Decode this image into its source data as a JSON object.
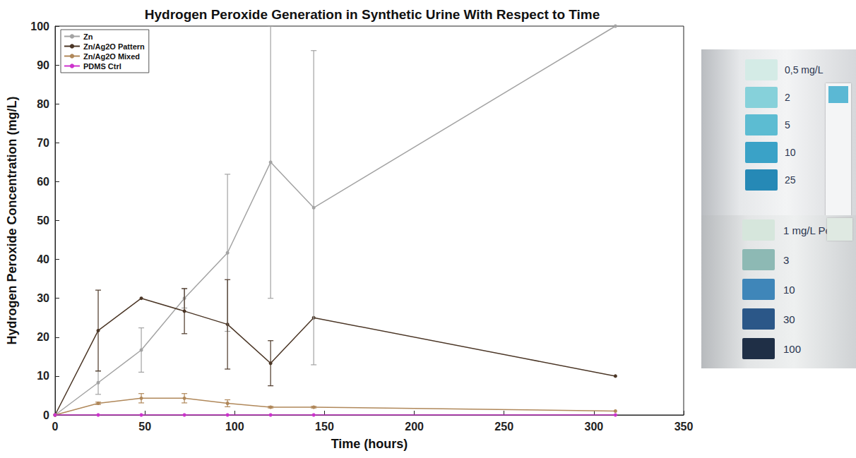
{
  "chart_data": {
    "type": "line",
    "title": "Hydrogen Peroxide Generation in Synthetic Urine With Respect to Time",
    "x_label": "Time (hours)",
    "y_label": "Hydrogen Peroxide Concentration (mg/L)",
    "xlim": [
      0,
      350
    ],
    "xticks": [
      0,
      50,
      100,
      150,
      200,
      250,
      300,
      350
    ],
    "ylim": [
      0,
      100
    ],
    "yticks": [
      0,
      10,
      20,
      30,
      40,
      50,
      60,
      70,
      80,
      90,
      100
    ],
    "grid": false,
    "legend": "top-left",
    "marker": "circle",
    "x": [
      0,
      24,
      48,
      72,
      96,
      120,
      144,
      312
    ],
    "series": [
      {
        "name": "Zn",
        "color": "#a3a3a3",
        "values": [
          0,
          8.3,
          16.7,
          30,
          41.7,
          65,
          53.3,
          100
        ],
        "errors": [
          0,
          3,
          5.7,
          2.5,
          20.2,
          35,
          40.4,
          0
        ]
      },
      {
        "name": "Zn/Ag2O Pattern",
        "color": "#4b3626",
        "values": [
          0,
          21.7,
          30,
          26.7,
          23.3,
          13.3,
          25,
          10
        ],
        "errors": [
          0,
          10.4,
          0,
          5.8,
          11.5,
          5.8,
          0,
          0
        ]
      },
      {
        "name": "Zn/Ag2O Mixed",
        "color": "#b0885a",
        "values": [
          0,
          3,
          4.3,
          4.3,
          3,
          2,
          2,
          1
        ],
        "errors": [
          0,
          0.3,
          1.2,
          1.2,
          0.9,
          0.2,
          0.2,
          0
        ]
      },
      {
        "name": "PDMS Ctrl",
        "color": "#cc33cc",
        "values": [
          0,
          0,
          0,
          0,
          0,
          0,
          0,
          0
        ],
        "errors": [
          0,
          0,
          0,
          0,
          0,
          0,
          0,
          0
        ]
      }
    ]
  },
  "test_strip_scales": [
    {
      "labels": [
        "0,5 mg/L",
        "2",
        "5",
        "10",
        "25"
      ]
    },
    {
      "labels": [
        "1 mg/L Pe",
        "3",
        "10",
        "30",
        "100"
      ]
    }
  ]
}
